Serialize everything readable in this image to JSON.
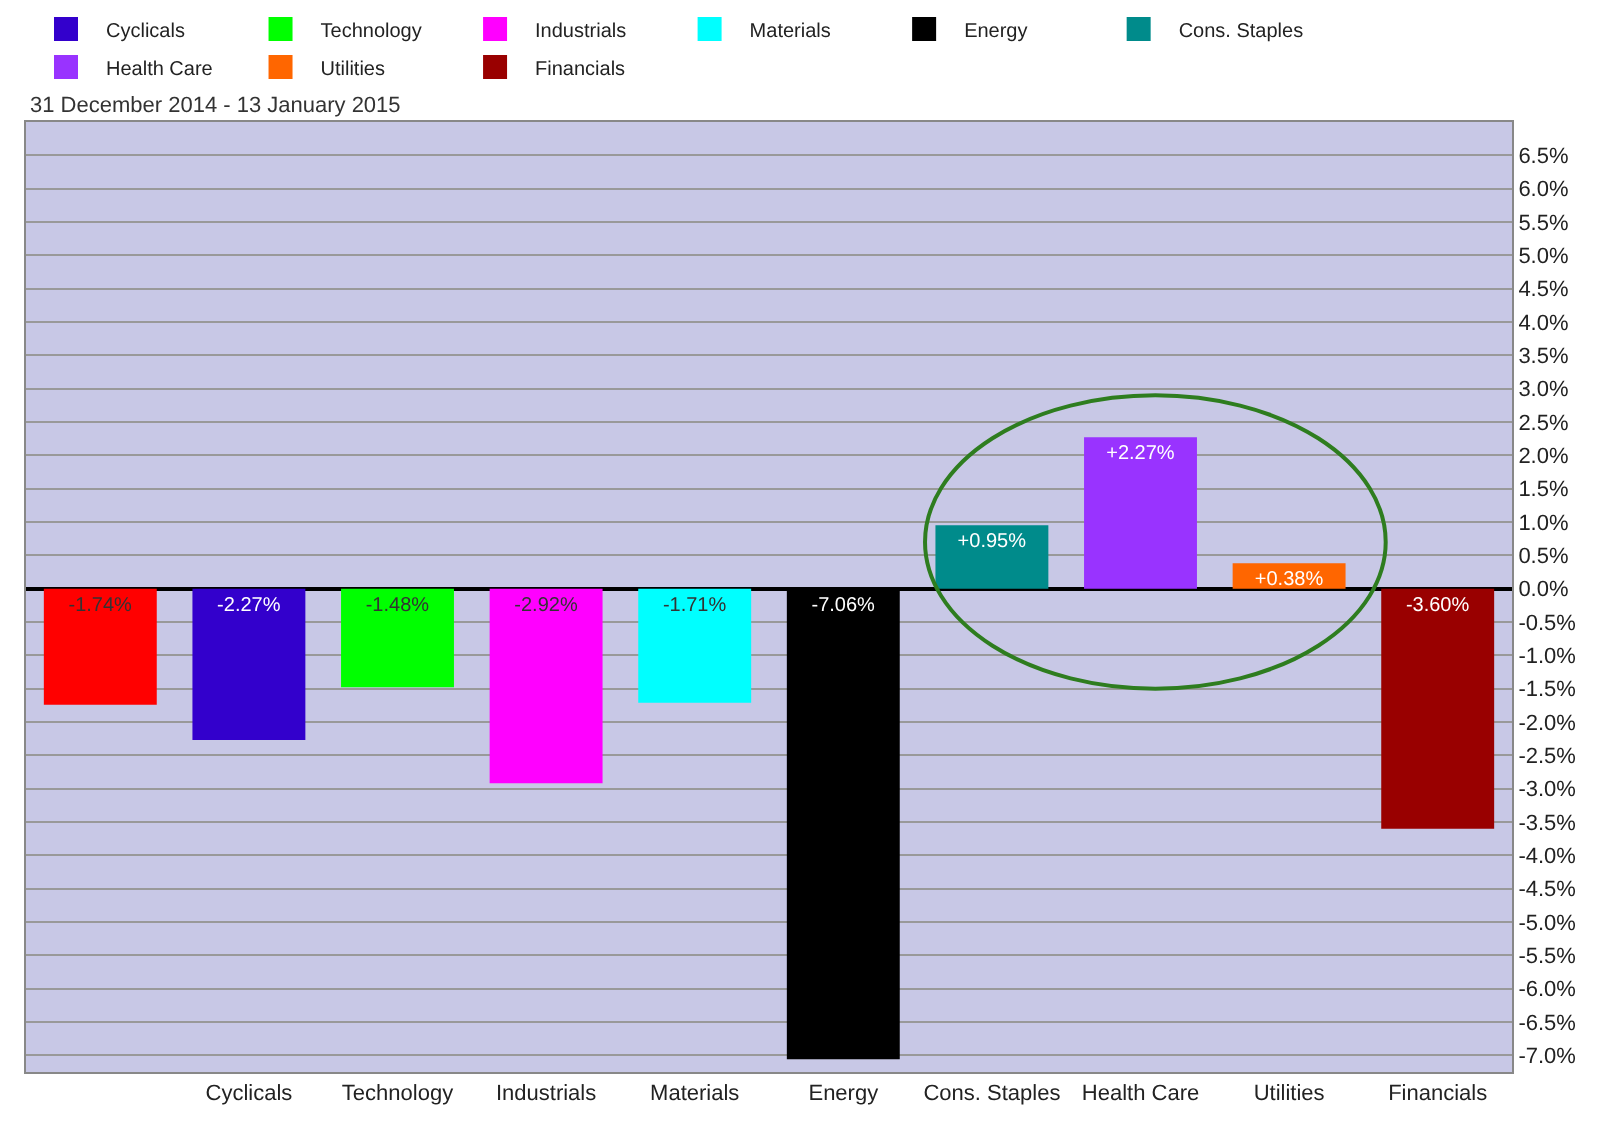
{
  "chart_data": {
    "type": "bar",
    "subtitle": "31 December 2014 - 13 January 2015",
    "categories": [
      null,
      "Cyclicals",
      "Technology",
      "Industrials",
      "Materials",
      "Energy",
      "Cons. Staples",
      "Health Care",
      "Utilities",
      "Financials"
    ],
    "series": [
      {
        "color": "#ff0000",
        "values": [
          -1.74,
          null,
          null,
          null,
          null,
          null,
          null,
          null,
          null,
          null
        ],
        "value_labels": [
          "-1.74%",
          null,
          null,
          null,
          null,
          null,
          null,
          null,
          null,
          null
        ]
      },
      {
        "name": "Cyclicals",
        "color": "#3300cc",
        "values": [
          null,
          -2.27,
          null,
          null,
          null,
          null,
          null,
          null,
          null,
          null
        ],
        "value_labels": [
          null,
          "-2.27%",
          null,
          null,
          null,
          null,
          null,
          null,
          null,
          null
        ]
      },
      {
        "name": "Technology",
        "color": "#00ff00",
        "values": [
          null,
          null,
          -1.48,
          null,
          null,
          null,
          null,
          null,
          null,
          null
        ],
        "value_labels": [
          null,
          null,
          "-1.48%",
          null,
          null,
          null,
          null,
          null,
          null,
          null
        ]
      },
      {
        "name": "Industrials",
        "color": "#ff00ff",
        "values": [
          null,
          null,
          null,
          -2.92,
          null,
          null,
          null,
          null,
          null,
          null
        ],
        "value_labels": [
          null,
          null,
          null,
          "-2.92%",
          null,
          null,
          null,
          null,
          null,
          null
        ]
      },
      {
        "name": "Materials",
        "color": "#00ffff",
        "values": [
          null,
          null,
          null,
          null,
          -1.71,
          null,
          null,
          null,
          null,
          null
        ],
        "value_labels": [
          null,
          null,
          null,
          null,
          "-1.71%",
          null,
          null,
          null,
          null,
          null
        ]
      },
      {
        "name": "Energy",
        "color": "#000000",
        "values": [
          null,
          null,
          null,
          null,
          null,
          -7.06,
          null,
          null,
          null,
          null
        ],
        "value_labels": [
          null,
          null,
          null,
          null,
          null,
          "-7.06%",
          null,
          null,
          null,
          null
        ]
      },
      {
        "name": "Cons. Staples",
        "color": "#008b8b",
        "values": [
          null,
          null,
          null,
          null,
          null,
          null,
          0.95,
          null,
          null,
          null
        ],
        "value_labels": [
          null,
          null,
          null,
          null,
          null,
          null,
          "+0.95%",
          null,
          null,
          null
        ]
      },
      {
        "name": "Health Care",
        "color": "#9933ff",
        "values": [
          null,
          null,
          null,
          null,
          null,
          null,
          null,
          2.27,
          null,
          null
        ],
        "value_labels": [
          null,
          null,
          null,
          null,
          null,
          null,
          null,
          "+2.27%",
          null,
          null
        ]
      },
      {
        "name": "Utilities",
        "color": "#ff6600",
        "values": [
          null,
          null,
          null,
          null,
          null,
          null,
          null,
          null,
          0.38,
          null
        ],
        "value_labels": [
          null,
          null,
          null,
          null,
          null,
          null,
          null,
          null,
          "+0.38%",
          null
        ]
      },
      {
        "name": "Financials",
        "color": "#990000",
        "values": [
          null,
          null,
          null,
          null,
          null,
          null,
          null,
          null,
          null,
          -3.6
        ],
        "value_labels": [
          null,
          null,
          null,
          null,
          null,
          null,
          null,
          null,
          null,
          "-3.60%"
        ]
      }
    ],
    "ylim": [
      -7.25,
      7.0
    ],
    "yticks": [
      {
        "value": 6.5,
        "label": "6.5%"
      },
      {
        "value": 6.0,
        "label": "6.0%"
      },
      {
        "value": 5.5,
        "label": "5.5%"
      },
      {
        "value": 5.0,
        "label": "5.0%"
      },
      {
        "value": 4.5,
        "label": "4.5%"
      },
      {
        "value": 4.0,
        "label": "4.0%"
      },
      {
        "value": 3.5,
        "label": "3.5%"
      },
      {
        "value": 3.0,
        "label": "3.0%"
      },
      {
        "value": 2.5,
        "label": "2.5%"
      },
      {
        "value": 2.0,
        "label": "2.0%"
      },
      {
        "value": 1.5,
        "label": "1.5%"
      },
      {
        "value": 1.0,
        "label": "1.0%"
      },
      {
        "value": 0.5,
        "label": "0.5%"
      },
      {
        "value": 0.0,
        "label": "0.0%"
      },
      {
        "value": -0.5,
        "label": "-0.5%"
      },
      {
        "value": -1.0,
        "label": "-1.0%"
      },
      {
        "value": -1.5,
        "label": "-1.5%"
      },
      {
        "value": -2.0,
        "label": "-2.0%"
      },
      {
        "value": -2.5,
        "label": "-2.5%"
      },
      {
        "value": -3.0,
        "label": "-3.0%"
      },
      {
        "value": -3.5,
        "label": "-3.5%"
      },
      {
        "value": -4.0,
        "label": "-4.0%"
      },
      {
        "value": -4.5,
        "label": "-4.5%"
      },
      {
        "value": -5.0,
        "label": "-5.0%"
      },
      {
        "value": -5.5,
        "label": "-5.5%"
      },
      {
        "value": -6.0,
        "label": "-6.0%"
      },
      {
        "value": -6.5,
        "label": "-6.5%"
      },
      {
        "value": -7.0,
        "label": "-7.0%"
      }
    ],
    "grid": "y",
    "legend": "top"
  }
}
